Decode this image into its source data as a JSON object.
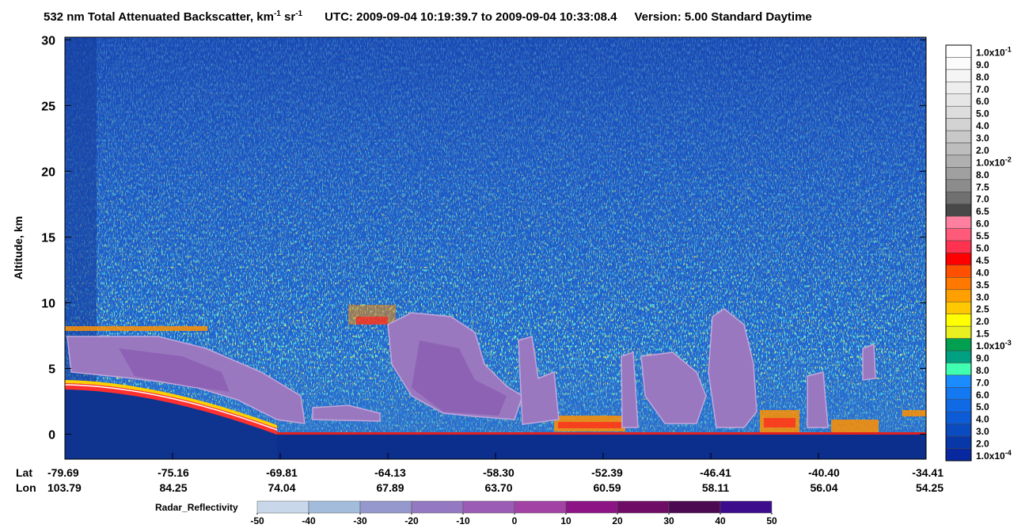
{
  "chart_data": {
    "type": "curtain",
    "title": {
      "main": "532 nm Total Attenuated Backscatter, km",
      "exp1": "-1",
      "unit2": " sr",
      "exp2": "-1",
      "utc": "UTC:  2009-09-04 10:19:39.7  to  2009-09-04 10:33:08.4",
      "version": "Version: 5.00  Standard  Daytime"
    },
    "ylabel": "Altitude, km",
    "ylim": [
      -1.9,
      30.2
    ],
    "yticks": [
      0,
      5,
      10,
      15,
      20,
      25,
      30
    ],
    "x_row_names": {
      "lat": "Lat",
      "lon": "Lon"
    },
    "lat": [
      "-79.69",
      "-75.16",
      "-69.81",
      "-64.13",
      "-58.30",
      "-52.39",
      "-46.41",
      "-40.40",
      "-34.41"
    ],
    "lon": [
      "103.79",
      "84.25",
      "74.04",
      "67.89",
      "63.70",
      "60.59",
      "58.11",
      "56.04",
      "54.25"
    ],
    "colorbar": [
      {
        "text": "1.0x10",
        "exp": "-1",
        "color": "#ffffff"
      },
      {
        "text": "9.0",
        "color": "#fbfbfb"
      },
      {
        "text": "8.0",
        "color": "#f5f5f5"
      },
      {
        "text": "7.0",
        "color": "#eeeeee"
      },
      {
        "text": "6.0",
        "color": "#e6e6e6"
      },
      {
        "text": "5.0",
        "color": "#dddddd"
      },
      {
        "text": "4.0",
        "color": "#d3d3d3"
      },
      {
        "text": "3.0",
        "color": "#c8c8c8"
      },
      {
        "text": "2.0",
        "color": "#bdbdbd"
      },
      {
        "text": "1.0x10",
        "exp": "-2",
        "color": "#b0b0b0"
      },
      {
        "text": "8.0",
        "color": "#a0a0a0"
      },
      {
        "text": "7.5",
        "color": "#8c8c8c"
      },
      {
        "text": "7.0",
        "color": "#707070"
      },
      {
        "text": "6.5",
        "color": "#484848"
      },
      {
        "text": "6.0",
        "color": "#ff7fa0"
      },
      {
        "text": "5.5",
        "color": "#ff5a7a"
      },
      {
        "text": "5.0",
        "color": "#ff3250"
      },
      {
        "text": "4.5",
        "color": "#ff0000"
      },
      {
        "text": "4.0",
        "color": "#ff5000"
      },
      {
        "text": "3.5",
        "color": "#ff7800"
      },
      {
        "text": "3.0",
        "color": "#ffa000"
      },
      {
        "text": "2.5",
        "color": "#ffc800"
      },
      {
        "text": "2.0",
        "color": "#ffff00"
      },
      {
        "text": "1.5",
        "color": "#e8f020"
      },
      {
        "text": "1.0x10",
        "exp": "-3",
        "color": "#00a050"
      },
      {
        "text": "9.0",
        "color": "#00a080"
      },
      {
        "text": "8.0",
        "color": "#40ffb0"
      },
      {
        "text": "7.0",
        "color": "#1a8cff"
      },
      {
        "text": "6.0",
        "color": "#1478f0"
      },
      {
        "text": "5.0",
        "color": "#106ae6"
      },
      {
        "text": "4.0",
        "color": "#0c5cd8"
      },
      {
        "text": "3.0",
        "color": "#0a4cc0"
      },
      {
        "text": "2.0",
        "color": "#0838a8"
      },
      {
        "text": "1.0x10",
        "exp": "-4",
        "color": "#0828a0"
      }
    ],
    "radar": {
      "label": "Radar_Reflectivity",
      "lim": [
        -50,
        50
      ],
      "ticks": [
        -50,
        -40,
        -30,
        -20,
        -10,
        0,
        10,
        20,
        30,
        40,
        50
      ],
      "colors": [
        "#c8d8ea",
        "#a4bcdc",
        "#9498cc",
        "#9478c2",
        "#9a5cb4",
        "#a242a4",
        "#8c1484",
        "#6e0c66",
        "#4c0a52",
        "#3c0c8c"
      ]
    }
  }
}
